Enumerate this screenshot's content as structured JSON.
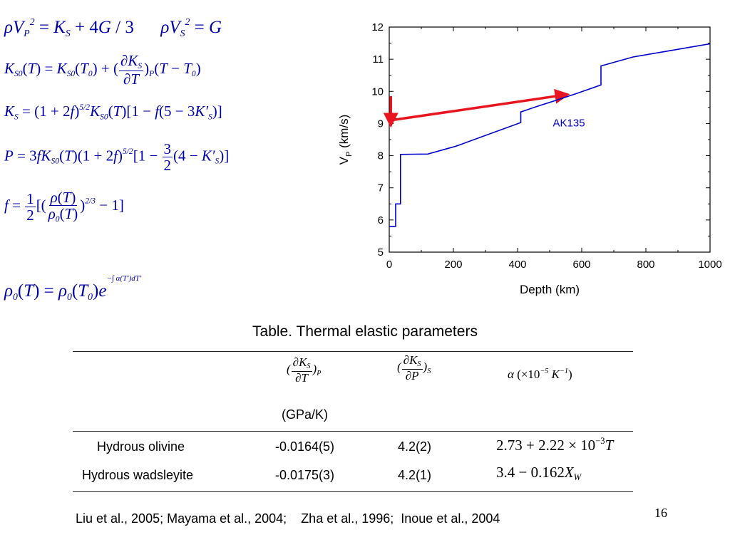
{
  "slide_number": "16",
  "colors": {
    "equation": "#0000aa",
    "model_line": "#0000cc",
    "arrow": "#e8141e"
  },
  "chart_data": {
    "type": "line",
    "xlabel": "Depth (km)",
    "ylabel": "V",
    "ylabel_sub": "P",
    "ylabel_unit": " (km/s)",
    "xlim": [
      0,
      1000
    ],
    "ylim": [
      5,
      12
    ],
    "x_ticks": [
      "0",
      "200",
      "400",
      "600",
      "800",
      "1000"
    ],
    "y_ticks": [
      "5",
      "6",
      "7",
      "8",
      "9",
      "10",
      "11",
      "12"
    ],
    "grid": false,
    "series": [
      {
        "name": "AK135",
        "x": [
          0,
          20,
          20,
          35,
          35,
          77.5,
          120,
          210,
          300,
          410,
          410,
          460,
          520,
          580,
          660,
          660,
          760,
          860,
          960,
          1000
        ],
        "y": [
          5.8,
          5.8,
          6.5,
          6.5,
          8.04,
          8.045,
          8.05,
          8.3,
          8.63,
          9.03,
          9.36,
          9.53,
          9.72,
          9.92,
          10.2,
          10.79,
          11.07,
          11.24,
          11.41,
          11.48
        ]
      }
    ],
    "annotations": [
      {
        "text": "AK135",
        "x": 470,
        "y": 9.0
      },
      {
        "type": "arrow",
        "from": [
          5,
          9.1
        ],
        "to": [
          540,
          9.88
        ]
      },
      {
        "type": "arrow",
        "from": [
          5,
          9.85
        ],
        "to": [
          5,
          9.1
        ]
      }
    ]
  },
  "table": {
    "title": "Table. Thermal elastic parameters",
    "unit_label": "(GPa/K)",
    "rows": [
      {
        "name": "Hydrous olivine",
        "dKdT": "-0.0164(5)",
        "dKdP": "4.2(2)"
      },
      {
        "name": "Hydrous wadsleyite",
        "dKdT": "-0.0175(3)",
        "dKdP": "4.2(1)"
      }
    ]
  },
  "references": "Liu et al., 2005; Mayama et al., 2004;    Zha et al., 1996;  Inoue et al., 2004"
}
